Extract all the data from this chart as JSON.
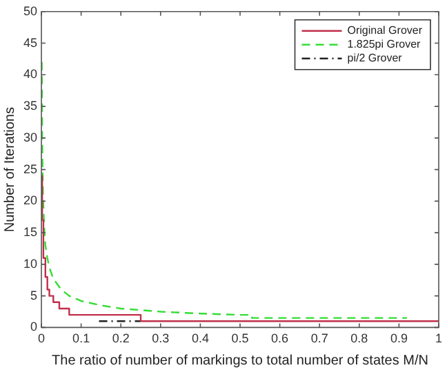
{
  "chart_data": {
    "type": "line",
    "xlabel": "The ratio of number of markings to total number of states M/N",
    "ylabel": "Number of Iterations",
    "xlim": [
      0,
      1
    ],
    "xticks": [
      0,
      0.1,
      0.2,
      0.3,
      0.4,
      0.5,
      0.6,
      0.7,
      0.8,
      0.9,
      1
    ],
    "ylim": [
      0,
      50
    ],
    "yticks": [
      0,
      5,
      10,
      15,
      20,
      25,
      30,
      35,
      40,
      45,
      50
    ],
    "grid": false,
    "legend": "top right",
    "marker": "none",
    "series": [
      {
        "name": "Original Grover",
        "type": "step",
        "color": "#c0304a",
        "line_style": "solid",
        "x": [
          0.001,
          0.002,
          0.005,
          0.01,
          0.015,
          0.02,
          0.03,
          0.045,
          0.07,
          0.25,
          1
        ],
        "values": [
          24,
          17,
          11,
          8,
          6,
          5,
          4,
          3,
          2,
          1,
          1
        ]
      },
      {
        "name": "1.825pi Grover",
        "type": "line",
        "color": "#33dd33",
        "line_style": "dashed",
        "x": [
          0.001,
          0.002,
          0.004,
          0.007,
          0.01,
          0.015,
          0.02,
          0.03,
          0.05,
          0.07,
          0.1,
          0.15,
          0.2,
          0.3,
          0.4,
          0.5,
          0.53,
          0.53,
          0.92
        ],
        "values": [
          42,
          30,
          21,
          16,
          13,
          11,
          9.5,
          7.7,
          6,
          5,
          4.2,
          3.5,
          3,
          2.5,
          2.2,
          2,
          2,
          1.5,
          1.5
        ]
      },
      {
        "name": "pi/2 Grover",
        "type": "step",
        "color": "#222222",
        "line_style": "dashdot",
        "x": [
          0.145,
          0.25
        ],
        "values": [
          1,
          1
        ]
      }
    ]
  }
}
